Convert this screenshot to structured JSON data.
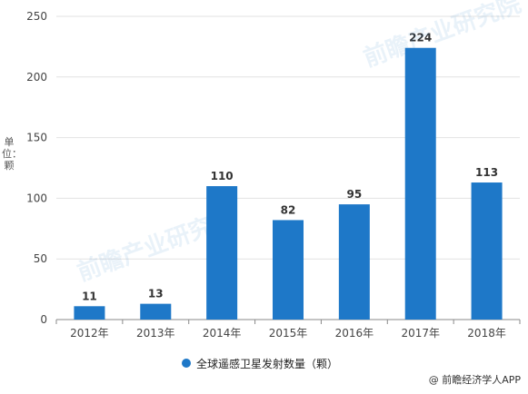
{
  "chart_data": {
    "type": "bar",
    "categories": [
      "2012年",
      "2013年",
      "2014年",
      "2015年",
      "2016年",
      "2017年",
      "2018年"
    ],
    "series": [
      {
        "name": "全球遥感卫星发射数量（颗）",
        "values": [
          11,
          13,
          110,
          82,
          95,
          224,
          113
        ]
      }
    ],
    "ylabel": "单位：颗",
    "ylim": [
      0,
      250
    ],
    "yticks": [
      0,
      50,
      100,
      150,
      200,
      250
    ],
    "grid": true,
    "legend_position": "bottom"
  },
  "colors": {
    "bar": "#1e78c8",
    "grid": "#e2e2e2",
    "axis": "#8a8a8a",
    "text": "#444444"
  },
  "watermark": {
    "text": "前瞻产业研究院"
  },
  "footer": {
    "credit": "@ 前瞻经济学人APP"
  }
}
